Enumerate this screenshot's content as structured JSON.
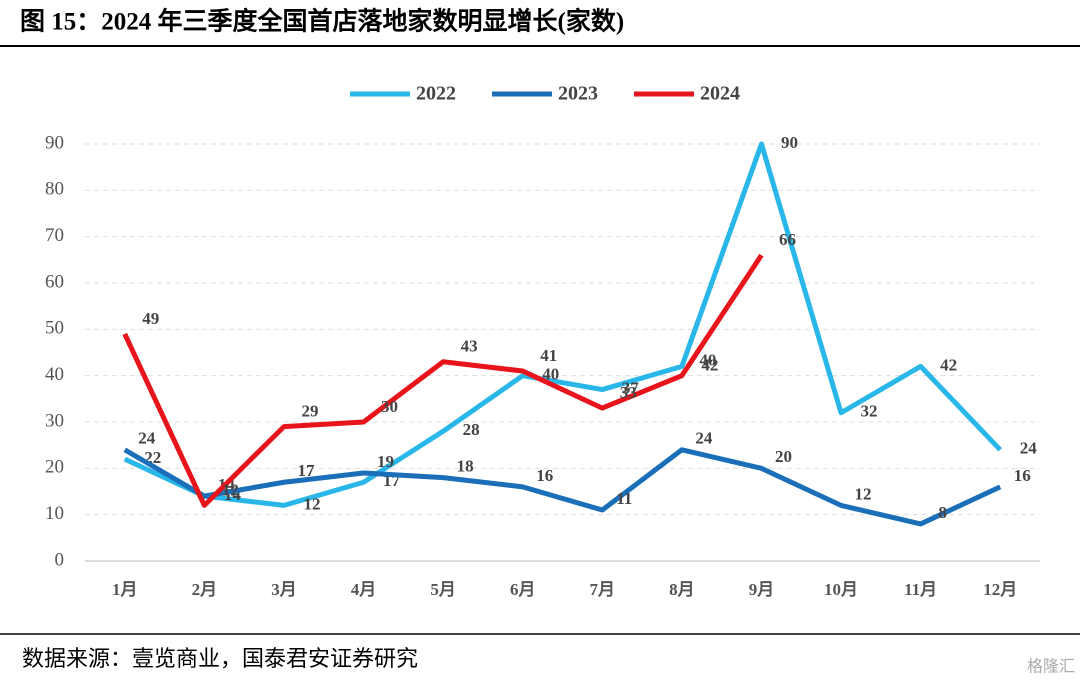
{
  "chart_data": {
    "type": "line",
    "title": "图 15：2024 年三季度全国首店落地家数明显增长(家数)",
    "source": "数据来源：壹览商业，国泰君安证券研究",
    "watermark": "格隆汇",
    "categories": [
      "1月",
      "2月",
      "3月",
      "4月",
      "5月",
      "6月",
      "7月",
      "8月",
      "9月",
      "10月",
      "11月",
      "12月"
    ],
    "series": [
      {
        "name": "2022",
        "color": "#29b6e8",
        "values": [
          22,
          14,
          12,
          17,
          28,
          40,
          37,
          42,
          90,
          32,
          42,
          24
        ]
      },
      {
        "name": "2023",
        "color": "#1a6fb8",
        "values": [
          24,
          14,
          17,
          19,
          18,
          16,
          11,
          24,
          20,
          12,
          8,
          16
        ]
      },
      {
        "name": "2024",
        "color": "#e8141c",
        "values": [
          49,
          12,
          29,
          30,
          43,
          41,
          33,
          40,
          66,
          null,
          null,
          null
        ]
      }
    ],
    "ylim": [
      0,
      90
    ],
    "yticks": [
      0,
      10,
      20,
      30,
      40,
      50,
      60,
      70,
      80,
      90
    ],
    "grid": true,
    "legend": "top"
  }
}
